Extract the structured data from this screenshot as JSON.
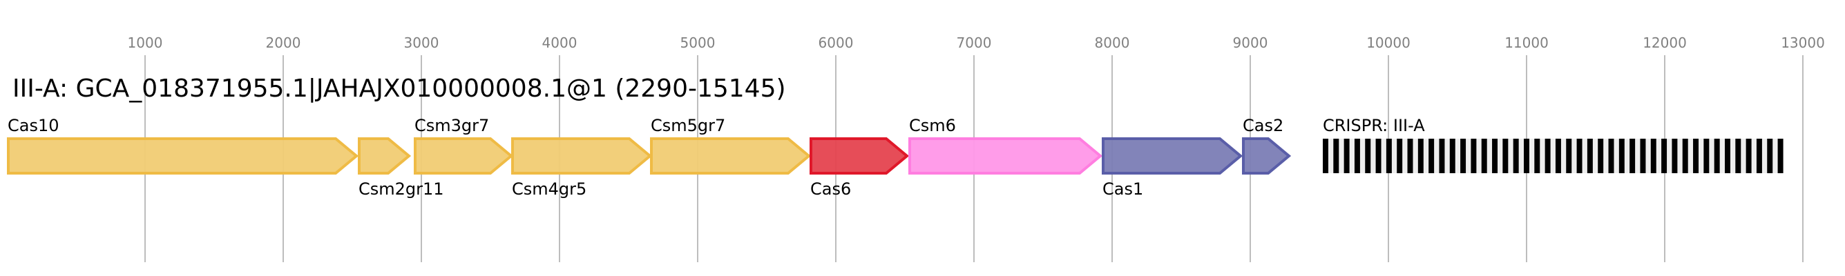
{
  "title": "III-A: GCA_018371955.1|JAHAJX010000008.1@1 (2290-15145)",
  "axis": {
    "ticks": [
      1000,
      2000,
      3000,
      4000,
      5000,
      6000,
      7000,
      8000,
      9000,
      10000,
      11000,
      12000,
      13000
    ],
    "tick_labels": [
      "1000",
      "2000",
      "3000",
      "4000",
      "5000",
      "6000",
      "7000",
      "8000",
      "9000",
      "10000",
      "11000",
      "12000",
      "13000"
    ]
  },
  "genes": [
    {
      "name": "Cas10",
      "start": 0,
      "end": 2540,
      "label_pos": "above",
      "fill": "#f1cc73",
      "stroke": "#efbb45"
    },
    {
      "name": "Csm2gr11",
      "start": 2540,
      "end": 2920,
      "label_pos": "below",
      "fill": "#f1cc73",
      "stroke": "#efbb45"
    },
    {
      "name": "Csm3gr7",
      "start": 2945,
      "end": 3660,
      "label_pos": "above",
      "fill": "#f1cc73",
      "stroke": "#efbb45"
    },
    {
      "name": "Csm4gr5",
      "start": 3650,
      "end": 4665,
      "label_pos": "below",
      "fill": "#f1cc73",
      "stroke": "#efbb45"
    },
    {
      "name": "Csm5gr7",
      "start": 4655,
      "end": 5815,
      "label_pos": "above",
      "fill": "#f1cc73",
      "stroke": "#efbb45"
    },
    {
      "name": "Cas6",
      "start": 5810,
      "end": 6525,
      "label_pos": "below",
      "fill": "#e5434f",
      "stroke": "#e0182a"
    },
    {
      "name": "Csm6",
      "start": 6525,
      "end": 7925,
      "label_pos": "above",
      "fill": "#ff97e8",
      "stroke": "#ff7ee0"
    },
    {
      "name": "Cas1",
      "start": 7925,
      "end": 8940,
      "label_pos": "below",
      "fill": "#7b7db5",
      "stroke": "#5a5ea8"
    },
    {
      "name": "Cas2",
      "start": 8940,
      "end": 9290,
      "label_pos": "above",
      "fill": "#7b7db5",
      "stroke": "#5a5ea8"
    }
  ],
  "crispr": {
    "label": "CRISPR: III-A",
    "start": 9525,
    "end": 12860,
    "repeats": 44,
    "color": "#000000",
    "spacer_color": "#eeeeee"
  }
}
